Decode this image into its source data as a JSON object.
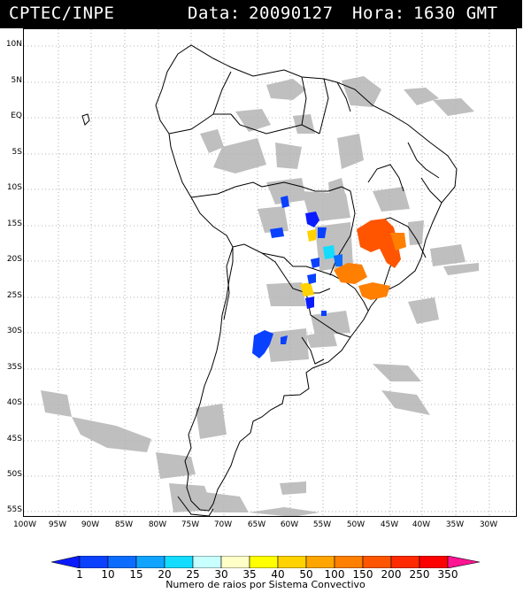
{
  "header": {
    "source": "CPTEC/INPE",
    "date_label": "Data:",
    "date": "20090127",
    "time_label": "Hora:",
    "time": "1630 GMT"
  },
  "axes": {
    "lat_labels": [
      "10N",
      "5N",
      "EQ",
      "5S",
      "10S",
      "15S",
      "20S",
      "25S",
      "30S",
      "35S",
      "40S",
      "45S",
      "50S",
      "55S"
    ],
    "lon_labels": [
      "100W",
      "95W",
      "90W",
      "85W",
      "80W",
      "75W",
      "70W",
      "65W",
      "60W",
      "55W",
      "50W",
      "45W",
      "40W",
      "35W",
      "30W"
    ]
  },
  "legend": {
    "title": "Numero de raios por Sistema Convectivo",
    "ticks": [
      "1",
      "10",
      "15",
      "20",
      "25",
      "30",
      "35",
      "40",
      "50",
      "100",
      "150",
      "200",
      "250",
      "350"
    ],
    "colors": [
      "#0a1bff",
      "#0a41ff",
      "#0c6cff",
      "#10a4ff",
      "#14dcff",
      "#c8ffff",
      "#ffffc8",
      "#ffff00",
      "#ffd200",
      "#ffa500",
      "#ff7f00",
      "#ff5500",
      "#ff2a00",
      "#ff0000",
      "#ff1493"
    ]
  },
  "colors": {
    "cloud": "#b4b4b4",
    "land_outline": "#000000",
    "grid": "#9a9a9a"
  }
}
